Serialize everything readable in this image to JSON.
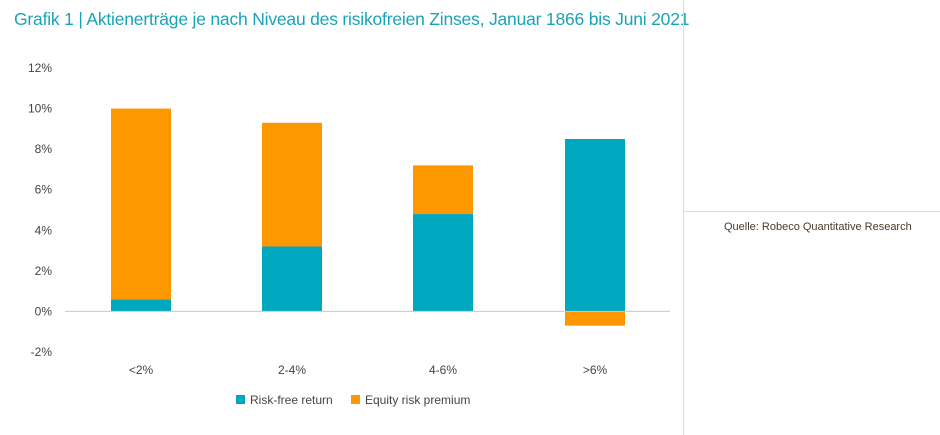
{
  "header": {
    "title": "Grafik 1 | Aktienerträge je nach Niveau des risikofreien Zinses, Januar 1866 bis Juni 2021"
  },
  "source": "Quelle: Robeco Quantitative Research",
  "colors": {
    "title": "#1aa3b7",
    "risk_free": "#00a8bf",
    "equity_premium": "#ff9800",
    "axis": "#c8c8c8",
    "text": "#444444"
  },
  "chart_data": {
    "type": "bar",
    "stacked": true,
    "title": "Grafik 1 | Aktienerträge je nach Niveau des risikofreien Zinses, Januar 1866 bis Juni 2021",
    "categories": [
      "<2%",
      "2-4%",
      "4-6%",
      ">6%"
    ],
    "series": [
      {
        "name": "Risk-free return",
        "color": "#00a8bf",
        "values": [
          0.6,
          3.2,
          4.8,
          8.5
        ]
      },
      {
        "name": "Equity risk premium",
        "color": "#ff9800",
        "values": [
          9.4,
          6.1,
          2.4,
          -0.7
        ]
      }
    ],
    "y_ticks": [
      "12%",
      "10%",
      "8%",
      "6%",
      "4%",
      "2%",
      "0%",
      "-2%"
    ],
    "ylim": [
      -2,
      12
    ],
    "xlabel": "",
    "ylabel": "",
    "grid": false,
    "legend_position": "bottom-center"
  }
}
